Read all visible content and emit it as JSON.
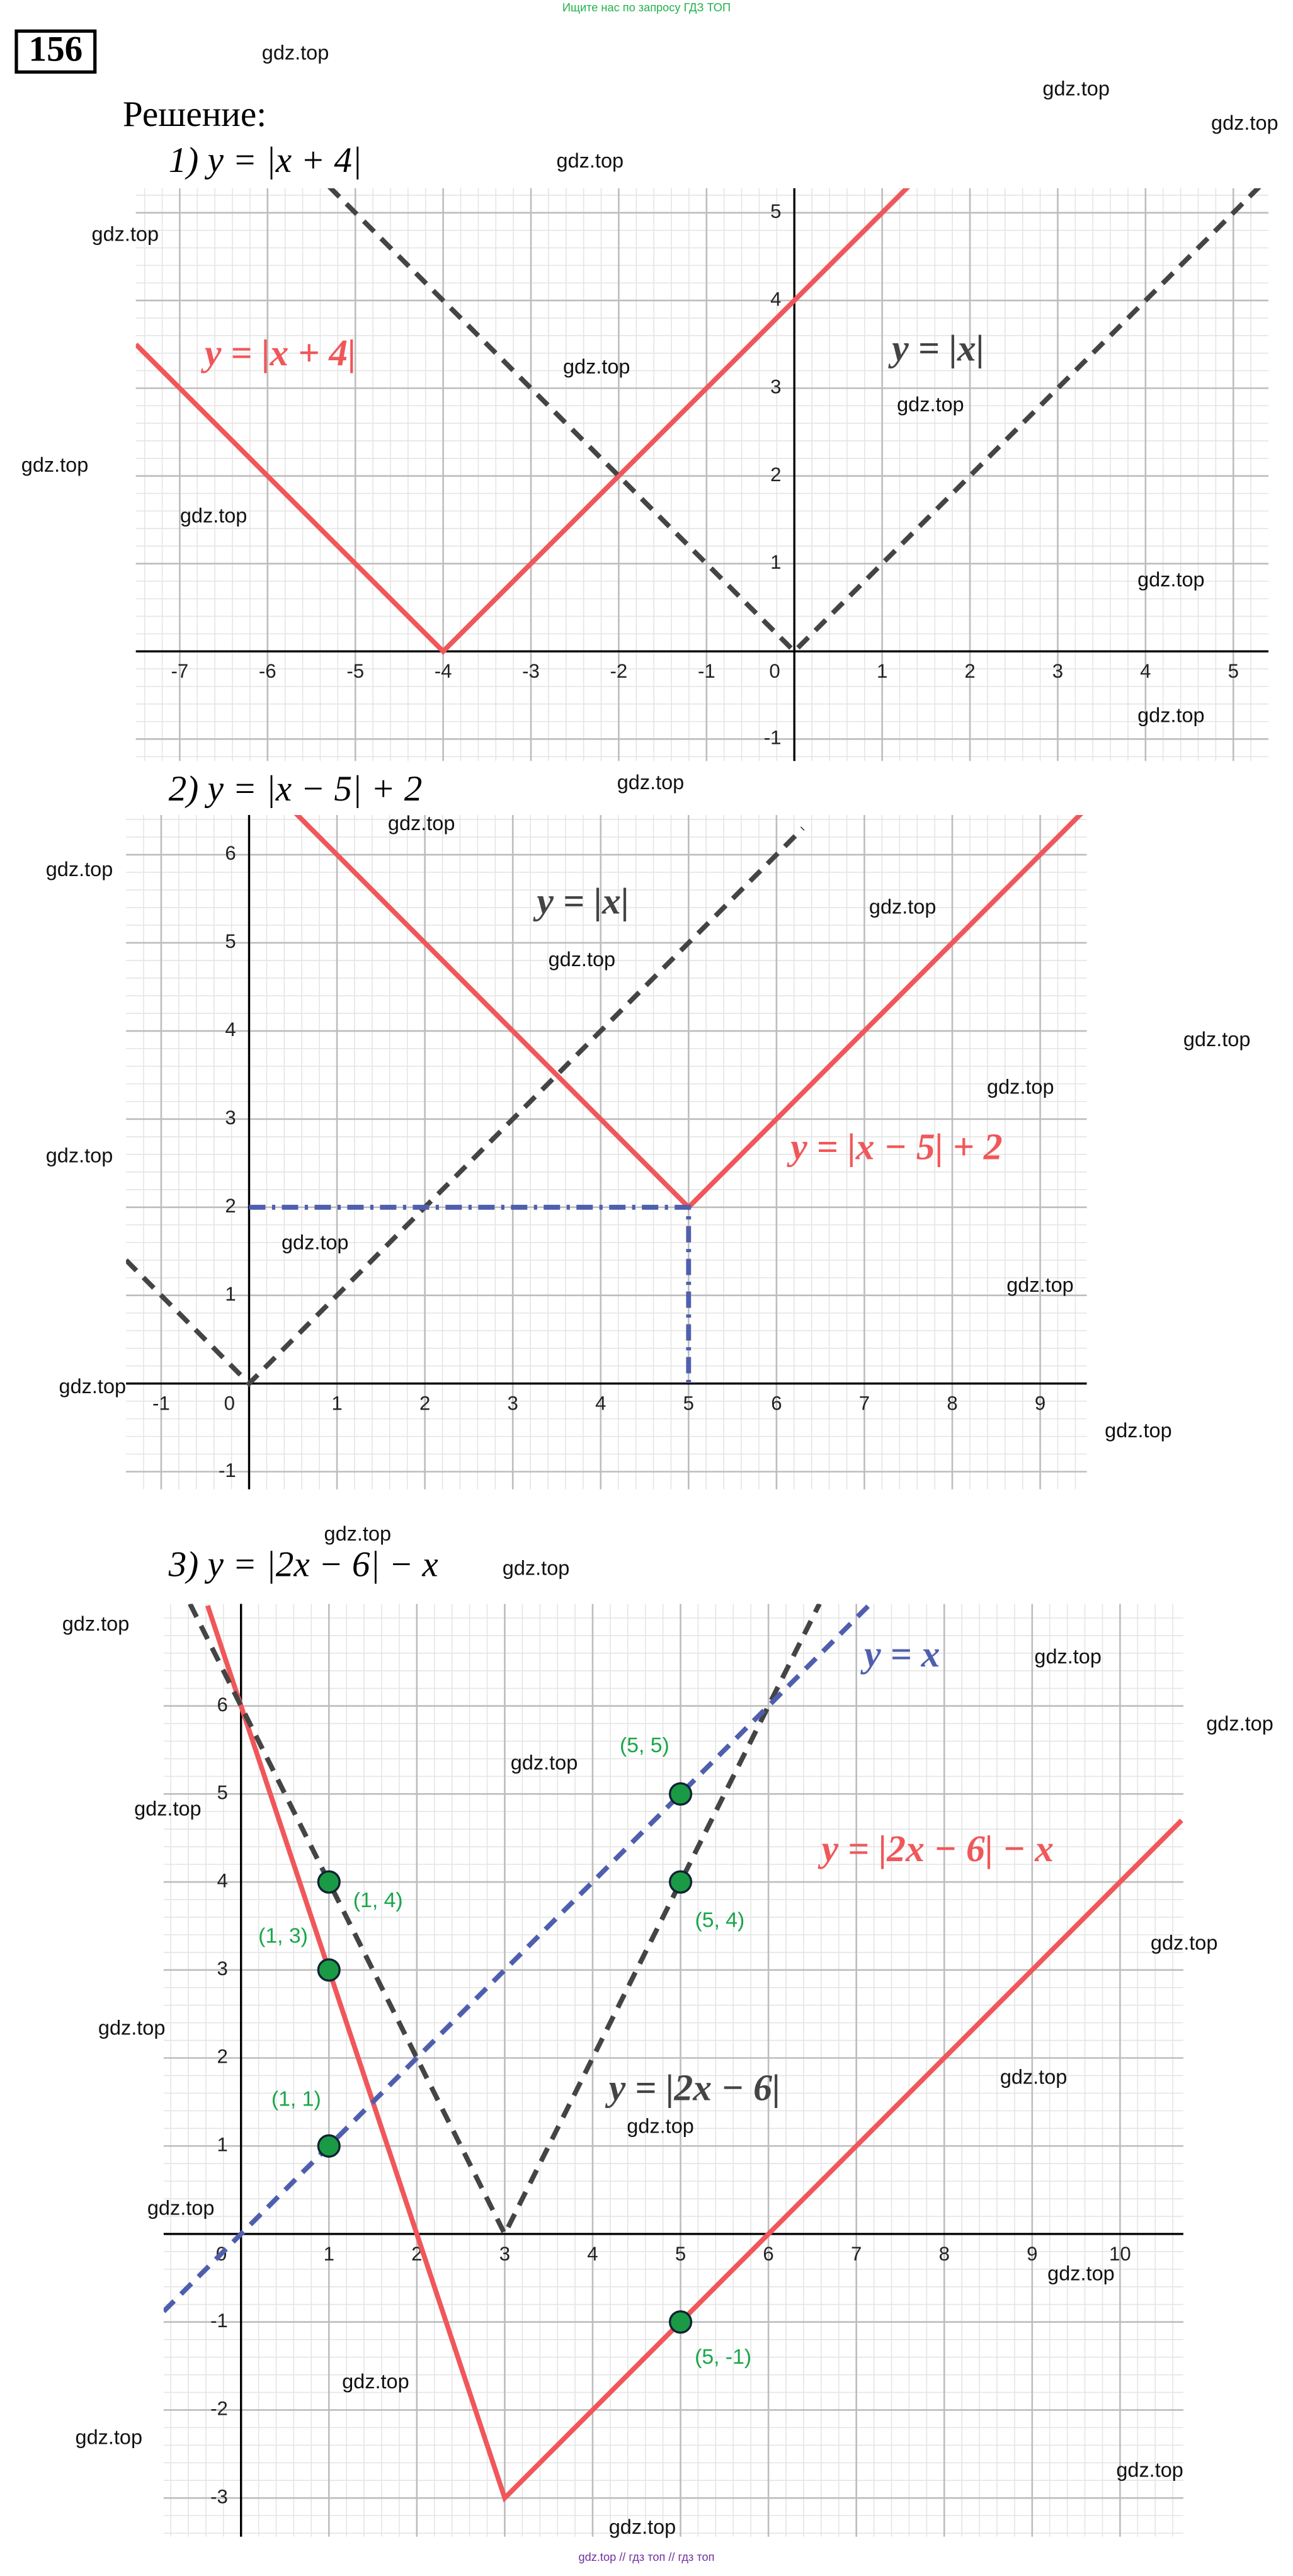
{
  "header": {
    "banner": "Ищите нас по запросу ГДЗ ТОП",
    "problem_number": "156",
    "solution_label": "Решение:"
  },
  "footer": "gdz.top // гдз топ // гдз топ",
  "watermarks": [
    "gdz.top",
    "gdz.top",
    "gdz.top",
    "gdz.top",
    "gdz.top",
    "gdz.top",
    "gdz.top",
    "gdz.top",
    "gdz.top",
    "gdz.top",
    "gdz.top",
    "gdz.top",
    "gdz.top",
    "gdz.top",
    "gdz.top",
    "gdz.top",
    "gdz.top",
    "gdz.top",
    "gdz.top",
    "gdz.top",
    "gdz.top",
    "gdz.top",
    "gdz.top",
    "gdz.top",
    "gdz.top",
    "gdz.top",
    "gdz.top",
    "gdz.top",
    "gdz.top",
    "gdz.top",
    "gdz.top",
    "gdz.top",
    "gdz.top",
    "gdz.top",
    "gdz.top",
    "gdz.top",
    "gdz.top",
    "gdz.top",
    "gdz.top",
    "gdz.top"
  ],
  "chart_data": [
    {
      "type": "line",
      "title": "1) y = |x + 4|",
      "grid": true,
      "xlim": [
        -7.5,
        5.4
      ],
      "ylim": [
        -1.25,
        5.28
      ],
      "xticks": [
        -7,
        -6,
        -5,
        -4,
        -3,
        -2,
        -1,
        0,
        1,
        2,
        3,
        4,
        5
      ],
      "yticks": [
        -1,
        1,
        2,
        3,
        4,
        5
      ],
      "series": [
        {
          "name": "y = |x + 4|",
          "color": "#f0575a",
          "dash": "solid",
          "x": [
            -7.5,
            -4,
            1.3
          ],
          "values": [
            3.5,
            0,
            5.3
          ]
        },
        {
          "name": "y = |x|",
          "color": "#444444",
          "dash": "dashed",
          "x": [
            -5.3,
            0,
            5.3
          ],
          "values": [
            5.3,
            0,
            5.3
          ]
        }
      ]
    },
    {
      "type": "line",
      "title": "2) y = |x − 5| + 2",
      "grid": true,
      "xlim": [
        -1.4,
        9.53
      ],
      "ylim": [
        -1.2,
        6.45
      ],
      "xticks": [
        -1,
        0,
        1,
        2,
        3,
        4,
        5,
        6,
        7,
        8,
        9
      ],
      "yticks": [
        -1,
        1,
        2,
        3,
        4,
        5,
        6
      ],
      "series": [
        {
          "name": "y = |x − 5| + 2",
          "color": "#f0575a",
          "dash": "solid",
          "x": [
            0.5,
            5,
            9.5
          ],
          "values": [
            6.5,
            2,
            6.5
          ]
        },
        {
          "name": "y = |x|",
          "color": "#444444",
          "dash": "dashed",
          "x": [
            -1.4,
            0,
            6.3
          ],
          "values": [
            1.4,
            0,
            6.3
          ]
        },
        {
          "color": "#4f5fae",
          "dash": "dashdot",
          "x": [
            0,
            5,
            5
          ],
          "values": [
            2,
            2,
            0
          ]
        }
      ]
    },
    {
      "type": "line",
      "title": "3) y = |2x − 6| − x",
      "grid": true,
      "xlim": [
        -0.88,
        10.72
      ],
      "ylim": [
        -3.44,
        7.16
      ],
      "xticks": [
        0,
        1,
        2,
        3,
        4,
        5,
        6,
        7,
        8,
        9,
        10
      ],
      "yticks": [
        -3,
        -2,
        -1,
        1,
        2,
        3,
        4,
        5,
        6
      ],
      "series": [
        {
          "name": "y = |2x − 6| − x",
          "color": "#f0575a",
          "dash": "solid",
          "x": [
            -0.38,
            3,
            10.7
          ],
          "values": [
            7.14,
            -3,
            4.7
          ]
        },
        {
          "name": "y = |2x − 6|",
          "color": "#444444",
          "dash": "dashed",
          "x": [
            -0.58,
            3,
            6.58
          ],
          "values": [
            7.16,
            0,
            7.16
          ]
        },
        {
          "name": "y = x",
          "color": "#4f5fae",
          "dash": "dashed",
          "x": [
            -0.88,
            7.16
          ],
          "values": [
            -0.88,
            7.16
          ]
        }
      ],
      "points": {
        "color": "#1a9a44",
        "x": [
          1,
          1,
          1,
          5,
          5,
          5
        ],
        "values": [
          1,
          3,
          4,
          5,
          4,
          -1
        ],
        "value_labels": [
          "(1, 1)",
          "(1, 3)",
          "(1, 4)",
          "(5, 5)",
          "(5, 4)",
          "(5, -1)"
        ]
      }
    }
  ]
}
